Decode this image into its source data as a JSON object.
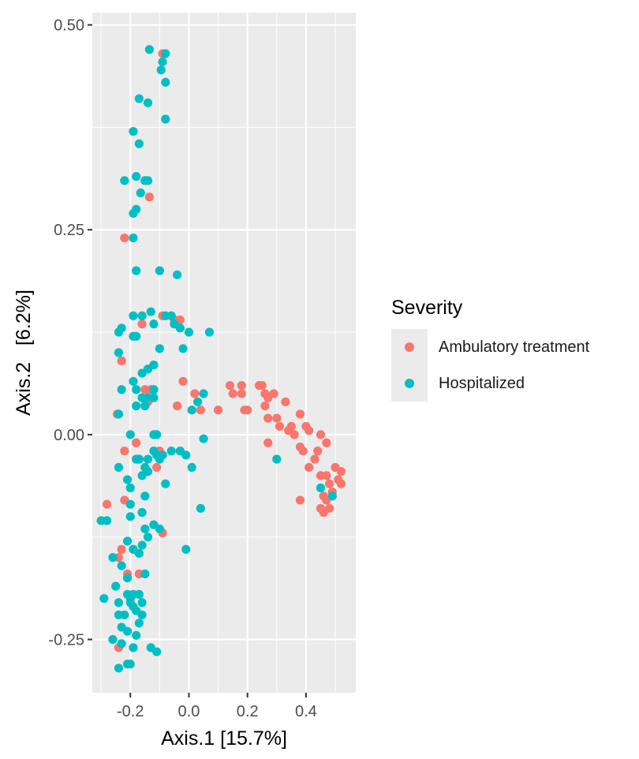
{
  "chart_data": {
    "type": "scatter",
    "xlabel": "Axis.1   [15.7%]",
    "ylabel": "Axis.2   [6.2%]",
    "xlim": [
      -0.33,
      0.57
    ],
    "ylim": [
      -0.315,
      0.515
    ],
    "x_ticks": [
      -0.2,
      0.0,
      0.2,
      0.4
    ],
    "x_tick_labels": [
      "-0.2",
      "0.0",
      "0.2",
      "0.4"
    ],
    "y_ticks": [
      -0.25,
      0.0,
      0.25,
      0.5
    ],
    "y_tick_labels": [
      "-0.25",
      "0.00",
      "0.25",
      "0.50"
    ],
    "grid": true,
    "legend": {
      "title": "Severity",
      "position": "right"
    },
    "series": [
      {
        "name": "Ambulatory treatment",
        "color": "#F8766D",
        "points": [
          [
            -0.09,
            0.465
          ],
          [
            -0.135,
            0.29
          ],
          [
            -0.22,
            0.24
          ],
          [
            -0.09,
            0.145
          ],
          [
            -0.05,
            0.14
          ],
          [
            -0.03,
            0.14
          ],
          [
            -0.16,
            0.135
          ],
          [
            -0.23,
            0.09
          ],
          [
            -0.02,
            0.065
          ],
          [
            -0.15,
            0.055
          ],
          [
            -0.13,
            0.055
          ],
          [
            -0.14,
            0.04
          ],
          [
            -0.04,
            0.035
          ],
          [
            0.02,
            0.05
          ],
          [
            -0.245,
            0.025
          ],
          [
            0.04,
            0.03
          ],
          [
            0.1,
            0.03
          ],
          [
            0.14,
            0.06
          ],
          [
            0.15,
            0.05
          ],
          [
            0.18,
            0.06
          ],
          [
            0.19,
            0.03
          ],
          [
            0.2,
            0.03
          ],
          [
            0.18,
            0.05
          ],
          [
            0.25,
            0.06
          ],
          [
            0.26,
            0.05
          ],
          [
            0.24,
            0.06
          ],
          [
            0.27,
            0.045
          ],
          [
            0.29,
            0.05
          ],
          [
            0.26,
            0.035
          ],
          [
            0.33,
            0.04
          ],
          [
            0.27,
            0.02
          ],
          [
            0.3,
            0.02
          ],
          [
            0.31,
            0.01
          ],
          [
            0.35,
            0.01
          ],
          [
            0.38,
            0.025
          ],
          [
            0.34,
            0.005
          ],
          [
            0.36,
            0.0
          ],
          [
            0.4,
            0.01
          ],
          [
            0.41,
            0.005
          ],
          [
            0.45,
            0.0
          ],
          [
            0.44,
            -0.02
          ],
          [
            0.47,
            -0.01
          ],
          [
            0.39,
            -0.02
          ],
          [
            0.43,
            -0.03
          ],
          [
            0.38,
            -0.015
          ],
          [
            0.27,
            -0.01
          ],
          [
            0.5,
            -0.04
          ],
          [
            0.52,
            -0.045
          ],
          [
            0.51,
            -0.055
          ],
          [
            0.47,
            -0.05
          ],
          [
            0.48,
            -0.06
          ],
          [
            0.52,
            -0.06
          ],
          [
            0.49,
            -0.07
          ],
          [
            0.45,
            -0.05
          ],
          [
            0.46,
            -0.075
          ],
          [
            0.47,
            -0.08
          ],
          [
            0.48,
            -0.09
          ],
          [
            0.45,
            -0.09
          ],
          [
            0.46,
            -0.095
          ],
          [
            0.38,
            -0.08
          ],
          [
            0.41,
            -0.04
          ],
          [
            -0.18,
            -0.01
          ],
          [
            -0.22,
            -0.02
          ],
          [
            -0.17,
            -0.03
          ],
          [
            -0.1,
            -0.02
          ],
          [
            -0.11,
            -0.04
          ],
          [
            -0.09,
            -0.025
          ],
          [
            -0.22,
            -0.08
          ],
          [
            -0.28,
            -0.085
          ],
          [
            -0.19,
            -0.14
          ],
          [
            -0.23,
            -0.14
          ],
          [
            -0.24,
            -0.15
          ],
          [
            -0.21,
            -0.17
          ],
          [
            -0.09,
            -0.12
          ],
          [
            -0.17,
            -0.17
          ],
          [
            -0.24,
            -0.26
          ]
        ]
      },
      {
        "name": "Hospitalized",
        "color": "#00BFC4",
        "points": [
          [
            -0.135,
            0.47
          ],
          [
            -0.08,
            0.465
          ],
          [
            -0.09,
            0.455
          ],
          [
            -0.095,
            0.445
          ],
          [
            -0.08,
            0.43
          ],
          [
            -0.17,
            0.41
          ],
          [
            -0.14,
            0.405
          ],
          [
            -0.08,
            0.385
          ],
          [
            -0.19,
            0.37
          ],
          [
            -0.17,
            0.355
          ],
          [
            -0.22,
            0.31
          ],
          [
            -0.18,
            0.315
          ],
          [
            -0.15,
            0.31
          ],
          [
            -0.14,
            0.31
          ],
          [
            -0.165,
            0.295
          ],
          [
            -0.18,
            0.275
          ],
          [
            -0.19,
            0.27
          ],
          [
            -0.19,
            0.24
          ],
          [
            -0.18,
            0.2
          ],
          [
            -0.1,
            0.2
          ],
          [
            -0.04,
            0.195
          ],
          [
            -0.13,
            0.15
          ],
          [
            -0.16,
            0.145
          ],
          [
            -0.08,
            0.145
          ],
          [
            -0.19,
            0.145
          ],
          [
            -0.06,
            0.145
          ],
          [
            -0.12,
            0.135
          ],
          [
            -0.05,
            0.135
          ],
          [
            -0.03,
            0.13
          ],
          [
            0.0,
            0.125
          ],
          [
            0.07,
            0.125
          ],
          [
            -0.23,
            0.13
          ],
          [
            -0.24,
            0.125
          ],
          [
            -0.18,
            0.12
          ],
          [
            -0.19,
            0.12
          ],
          [
            -0.1,
            0.105
          ],
          [
            -0.02,
            0.105
          ],
          [
            -0.24,
            0.1
          ],
          [
            -0.12,
            0.085
          ],
          [
            -0.14,
            0.08
          ],
          [
            -0.16,
            0.075
          ],
          [
            -0.19,
            0.065
          ],
          [
            -0.23,
            0.055
          ],
          [
            -0.18,
            0.055
          ],
          [
            -0.12,
            0.055
          ],
          [
            -0.16,
            0.045
          ],
          [
            -0.14,
            0.045
          ],
          [
            -0.12,
            0.045
          ],
          [
            -0.15,
            0.035
          ],
          [
            -0.18,
            0.035
          ],
          [
            -0.24,
            0.025
          ],
          [
            0.05,
            0.05
          ],
          [
            0.03,
            0.04
          ],
          [
            0.01,
            0.03
          ],
          [
            -0.2,
            0.0
          ],
          [
            -0.11,
            0.0
          ],
          [
            -0.12,
            0.0
          ],
          [
            0.05,
            -0.005
          ],
          [
            -0.24,
            -0.04
          ],
          [
            -0.18,
            -0.03
          ],
          [
            -0.17,
            -0.03
          ],
          [
            -0.12,
            -0.02
          ],
          [
            -0.11,
            -0.025
          ],
          [
            -0.09,
            -0.025
          ],
          [
            -0.06,
            -0.02
          ],
          [
            -0.03,
            -0.02
          ],
          [
            -0.01,
            -0.025
          ],
          [
            -0.1,
            -0.03
          ],
          [
            -0.14,
            -0.03
          ],
          [
            -0.14,
            -0.045
          ],
          [
            -0.15,
            -0.04
          ],
          [
            -0.16,
            -0.05
          ],
          [
            -0.08,
            -0.06
          ],
          [
            -0.21,
            -0.055
          ],
          [
            -0.2,
            -0.065
          ],
          [
            -0.15,
            -0.075
          ],
          [
            -0.2,
            -0.085
          ],
          [
            -0.16,
            -0.095
          ],
          [
            -0.2,
            -0.1
          ],
          [
            -0.3,
            -0.105
          ],
          [
            -0.28,
            -0.105
          ],
          [
            -0.12,
            -0.11
          ],
          [
            -0.15,
            -0.115
          ],
          [
            -0.14,
            -0.125
          ],
          [
            -0.1,
            -0.115
          ],
          [
            0.04,
            -0.09
          ],
          [
            0.01,
            -0.04
          ],
          [
            -0.21,
            -0.13
          ],
          [
            -0.19,
            -0.14
          ],
          [
            -0.17,
            -0.145
          ],
          [
            -0.16,
            -0.135
          ],
          [
            -0.01,
            -0.14
          ],
          [
            -0.26,
            -0.15
          ],
          [
            -0.23,
            -0.16
          ],
          [
            -0.21,
            -0.175
          ],
          [
            -0.15,
            -0.17
          ],
          [
            -0.19,
            -0.195
          ],
          [
            -0.2,
            -0.2
          ],
          [
            -0.21,
            -0.195
          ],
          [
            -0.25,
            -0.185
          ],
          [
            -0.29,
            -0.2
          ],
          [
            -0.24,
            -0.205
          ],
          [
            -0.2,
            -0.205
          ],
          [
            -0.22,
            -0.22
          ],
          [
            -0.18,
            -0.215
          ],
          [
            -0.16,
            -0.22
          ],
          [
            -0.24,
            -0.22
          ],
          [
            -0.23,
            -0.235
          ],
          [
            -0.17,
            -0.23
          ],
          [
            -0.18,
            -0.245
          ],
          [
            -0.21,
            -0.24
          ],
          [
            -0.23,
            -0.255
          ],
          [
            -0.26,
            -0.25
          ],
          [
            -0.19,
            -0.26
          ],
          [
            -0.13,
            -0.26
          ],
          [
            -0.11,
            -0.265
          ],
          [
            -0.21,
            -0.28
          ],
          [
            -0.2,
            -0.28
          ],
          [
            -0.24,
            -0.285
          ],
          [
            -0.17,
            -0.195
          ],
          [
            -0.16,
            -0.205
          ],
          [
            -0.19,
            -0.21
          ],
          [
            0.3,
            -0.03
          ],
          [
            0.45,
            -0.065
          ],
          [
            0.49,
            -0.075
          ]
        ]
      }
    ]
  }
}
